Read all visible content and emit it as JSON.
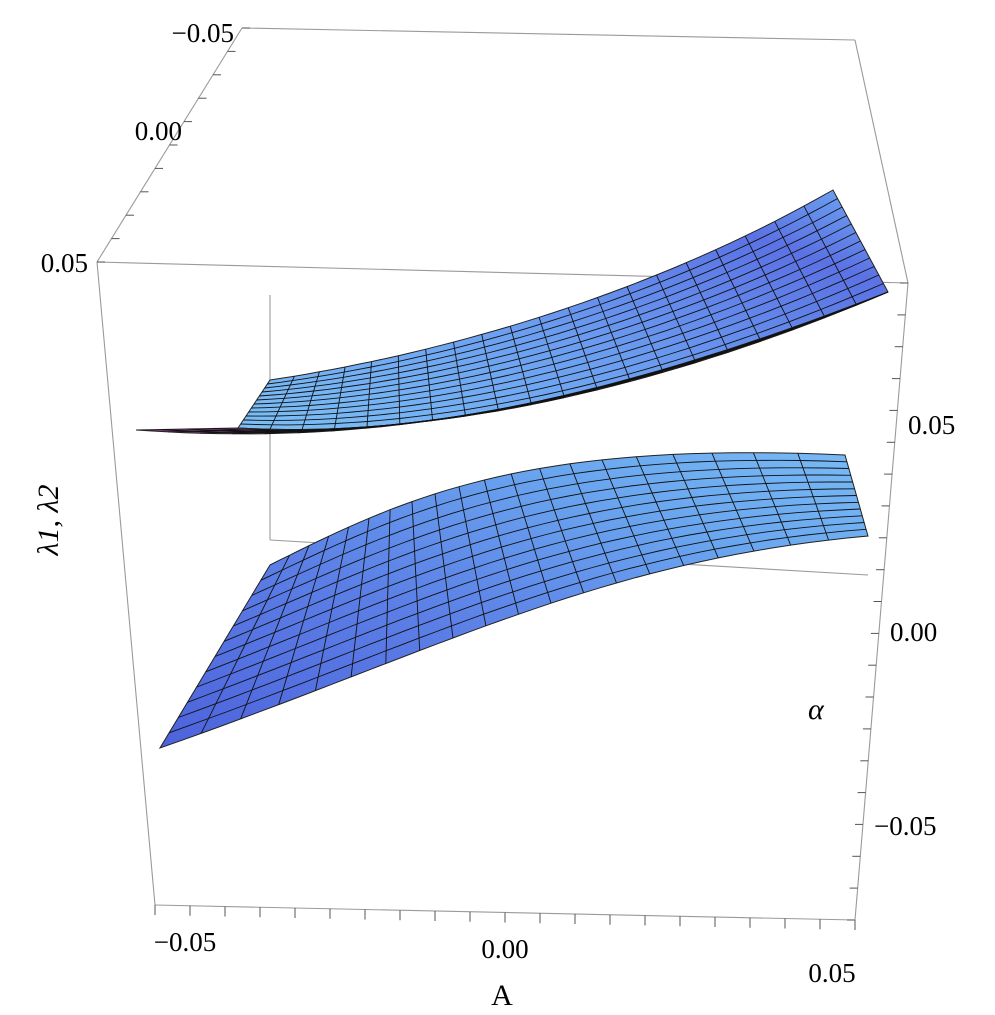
{
  "chart_data": {
    "type": "surface3d",
    "title": "",
    "axes": {
      "x": {
        "label": "A",
        "range": [
          -0.05,
          0.05
        ],
        "ticks": [
          "−0.05",
          "0.00",
          "0.05"
        ]
      },
      "y": {
        "label": "α",
        "range": [
          -0.05,
          0.05
        ],
        "ticks": [
          "−0.05",
          "0.00",
          "0.05"
        ]
      },
      "z": {
        "label": "λ1, λ2",
        "ticks": [
          "−0.05",
          "0.00",
          "0.05"
        ]
      }
    },
    "series": [
      {
        "color": "#6aa8ee"
      },
      {
        "color": "#5a7fe0"
      },
      {
        "color": "#7a3a78"
      }
    ],
    "mesh": {
      "u_lines": 20,
      "v_lines": 12
    },
    "grid": false,
    "legend": "none"
  }
}
